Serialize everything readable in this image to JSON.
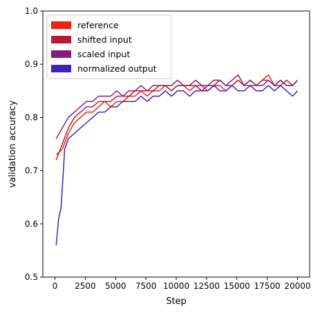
{
  "chart_data": {
    "type": "line",
    "title": "",
    "xlabel": "Step",
    "ylabel": "validation accuracy",
    "xlim": [
      -1000,
      21000
    ],
    "ylim": [
      0.5,
      1.0
    ],
    "x_ticks": [
      0,
      2500,
      5000,
      7500,
      10000,
      12500,
      15000,
      17500,
      20000
    ],
    "x_tick_labels": [
      "0",
      "2500",
      "5000",
      "7500",
      "10000",
      "12500",
      "15000",
      "17500",
      "20000"
    ],
    "y_ticks": [
      0.5,
      0.6,
      0.7,
      0.8,
      0.9,
      1.0
    ],
    "y_tick_labels": [
      "0.5",
      "0.6",
      "0.7",
      "0.8",
      "0.9",
      "1.0"
    ],
    "grid": false,
    "legend_position": "top-left",
    "series": [
      {
        "name": "reference",
        "color": "#f0220e",
        "x": [
          100,
          600,
          1100,
          1600,
          2100,
          2600,
          3100,
          3600,
          4100,
          4600,
          5100,
          5600,
          6100,
          6600,
          7100,
          7600,
          8100,
          8600,
          9100,
          9600,
          10100,
          10600,
          11100,
          11600,
          12100,
          12600,
          13100,
          13600,
          14100,
          14600,
          15100,
          15600,
          16100,
          16600,
          17100,
          17600,
          18100,
          18600,
          19100,
          19600,
          20000
        ],
        "values": [
          0.73,
          0.74,
          0.77,
          0.79,
          0.8,
          0.81,
          0.81,
          0.82,
          0.83,
          0.82,
          0.83,
          0.83,
          0.84,
          0.84,
          0.85,
          0.84,
          0.85,
          0.85,
          0.86,
          0.85,
          0.86,
          0.86,
          0.85,
          0.86,
          0.86,
          0.85,
          0.86,
          0.86,
          0.85,
          0.86,
          0.87,
          0.86,
          0.86,
          0.86,
          0.87,
          0.88,
          0.86,
          0.87,
          0.86,
          0.86,
          0.87
        ]
      },
      {
        "name": "shifted input",
        "color": "#b8183a",
        "x": [
          100,
          600,
          1100,
          1600,
          2100,
          2600,
          3100,
          3600,
          4100,
          4600,
          5100,
          5600,
          6100,
          6600,
          7100,
          7600,
          8100,
          8600,
          9100,
          9600,
          10100,
          10600,
          11100,
          11600,
          12100,
          12600,
          13100,
          13600,
          14100,
          14600,
          15100,
          15600,
          16100,
          16600,
          17100,
          17600,
          18100,
          18600,
          19100,
          19600,
          20000
        ],
        "values": [
          0.72,
          0.75,
          0.78,
          0.8,
          0.81,
          0.82,
          0.82,
          0.83,
          0.83,
          0.83,
          0.84,
          0.84,
          0.84,
          0.85,
          0.85,
          0.85,
          0.85,
          0.86,
          0.86,
          0.85,
          0.86,
          0.86,
          0.86,
          0.86,
          0.85,
          0.86,
          0.86,
          0.87,
          0.86,
          0.86,
          0.87,
          0.86,
          0.87,
          0.86,
          0.86,
          0.87,
          0.86,
          0.86,
          0.87,
          0.86,
          0.87
        ]
      },
      {
        "name": "scaled input",
        "color": "#861c80",
        "x": [
          100,
          600,
          1100,
          1600,
          2100,
          2600,
          3100,
          3600,
          4100,
          4600,
          5100,
          5600,
          6100,
          6600,
          7100,
          7600,
          8100,
          8600,
          9100,
          9600,
          10100,
          10600,
          11100,
          11600,
          12100,
          12600,
          13100,
          13600,
          14100,
          14600,
          15100,
          15600,
          16100,
          16600,
          17100,
          17600,
          18100,
          18600,
          19100,
          19600,
          20000
        ],
        "values": [
          0.76,
          0.78,
          0.8,
          0.81,
          0.82,
          0.83,
          0.83,
          0.84,
          0.84,
          0.84,
          0.85,
          0.84,
          0.85,
          0.85,
          0.86,
          0.85,
          0.86,
          0.86,
          0.86,
          0.86,
          0.87,
          0.86,
          0.86,
          0.87,
          0.86,
          0.86,
          0.87,
          0.87,
          0.86,
          0.87,
          0.88,
          0.86,
          0.87,
          0.86,
          0.87,
          0.87,
          0.86,
          0.87,
          0.86,
          0.86,
          0.87
        ]
      },
      {
        "name": "normalized output",
        "color": "#4020b8",
        "x": [
          100,
          300,
          500,
          800,
          1100,
          1600,
          2100,
          2600,
          3100,
          3600,
          4100,
          4600,
          5100,
          5600,
          6100,
          6600,
          7100,
          7600,
          8100,
          8600,
          9100,
          9600,
          10100,
          10600,
          11100,
          11600,
          12100,
          12600,
          13100,
          13600,
          14100,
          14600,
          15100,
          15600,
          16100,
          16600,
          17100,
          17600,
          18100,
          18600,
          19100,
          19600,
          20000
        ],
        "values": [
          0.56,
          0.61,
          0.63,
          0.74,
          0.76,
          0.77,
          0.78,
          0.79,
          0.8,
          0.81,
          0.81,
          0.82,
          0.82,
          0.83,
          0.83,
          0.83,
          0.84,
          0.83,
          0.84,
          0.84,
          0.85,
          0.84,
          0.85,
          0.85,
          0.84,
          0.85,
          0.85,
          0.85,
          0.86,
          0.85,
          0.85,
          0.86,
          0.85,
          0.85,
          0.86,
          0.85,
          0.85,
          0.86,
          0.85,
          0.86,
          0.85,
          0.84,
          0.85
        ]
      }
    ]
  }
}
